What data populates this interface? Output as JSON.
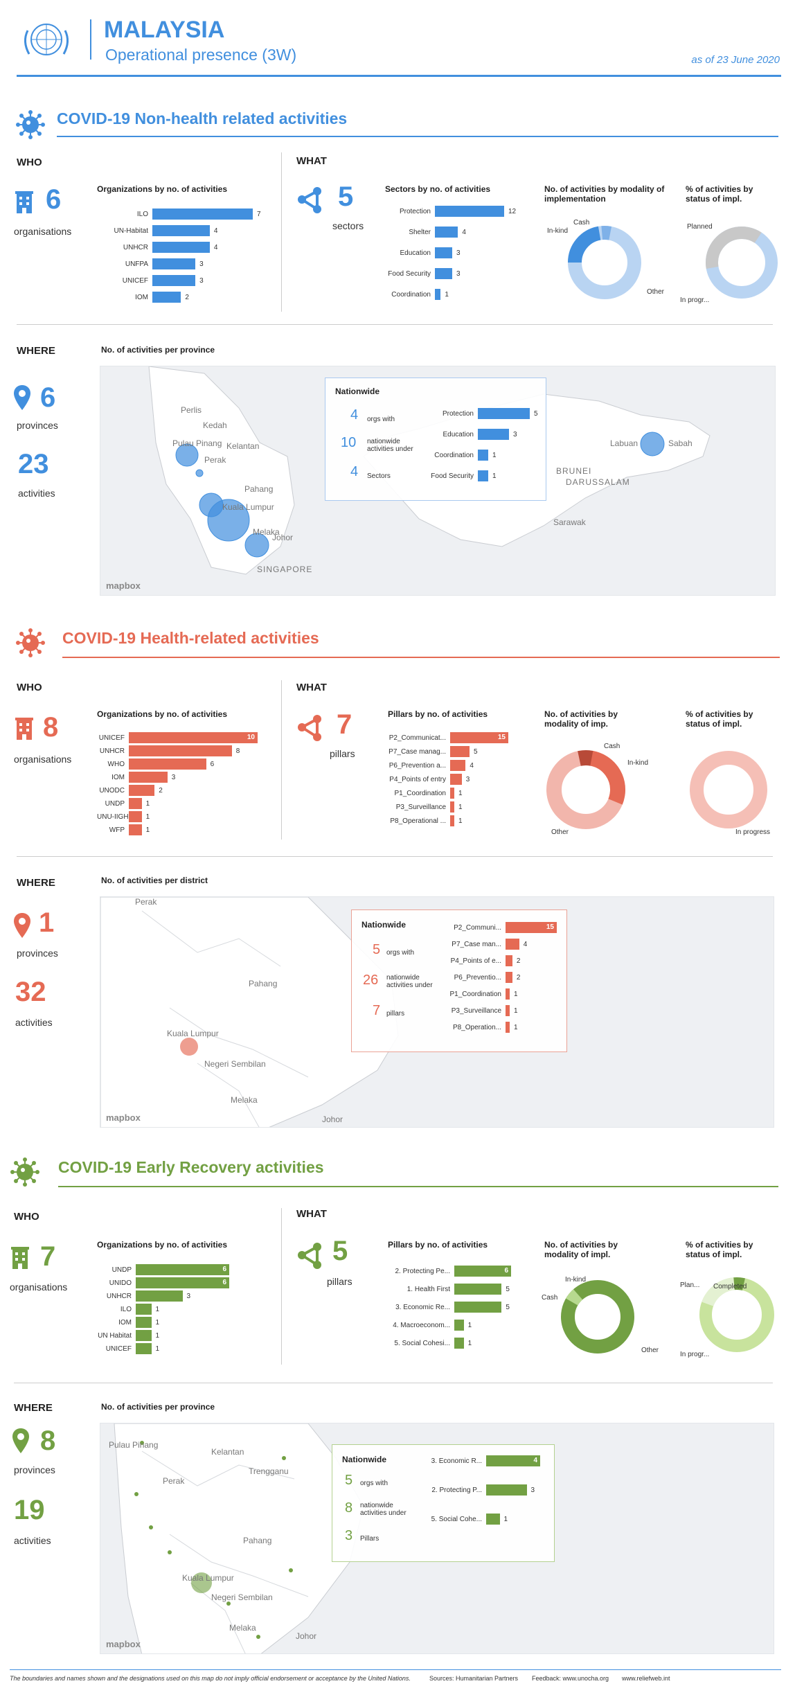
{
  "header": {
    "title": "MALAYSIA",
    "subtitle": "Operational presence (3W)",
    "date": "as of 23 June 2020"
  },
  "labels": {
    "who": "WHO",
    "what": "WHAT",
    "where": "WHERE",
    "nationwide": "Nationwide",
    "mapbox": "mapbox"
  },
  "colors": {
    "blue": "#418fde",
    "red": "#e56a54",
    "green": "#72a043"
  },
  "s1": {
    "title": "COVID-19 Non-health related activities",
    "orgs_count": "6",
    "orgs_label": "organisations",
    "orgs_chart_title": "Organizations by no. of activities",
    "orgs": [
      {
        "name": "ILO",
        "value": 7
      },
      {
        "name": "UN-Habitat",
        "value": 4
      },
      {
        "name": "UNHCR",
        "value": 4
      },
      {
        "name": "UNFPA",
        "value": 3
      },
      {
        "name": "UNICEF",
        "value": 3
      },
      {
        "name": "IOM",
        "value": 2
      }
    ],
    "what_count": "5",
    "what_label": "sectors",
    "what_chart_title": "Sectors by no. of activities",
    "what": [
      {
        "name": "Protection",
        "value": 12
      },
      {
        "name": "Shelter",
        "value": 4
      },
      {
        "name": "Education",
        "value": 3
      },
      {
        "name": "Food Security",
        "value": 3
      },
      {
        "name": "Coordination",
        "value": 1
      }
    ],
    "modality_title": "No. of activities by modality of implementation",
    "modality_labels": {
      "a": "Cash",
      "b": "In-kind",
      "c": "Other"
    },
    "status_title": "% of activities by status of impl.",
    "status_labels": {
      "a": "Planned",
      "b": "In progr..."
    },
    "where_count": "6",
    "where_label": "provinces",
    "acts_count": "23",
    "acts_label": "activities",
    "map_title": "No. of activities per province",
    "nw": {
      "orgs": "4",
      "orgs_label": "orgs with",
      "acts": "10",
      "acts_label": "nationwide activities under",
      "sec": "4",
      "sec_label": "Sectors",
      "bars": [
        {
          "name": "Protection",
          "value": 5
        },
        {
          "name": "Education",
          "value": 3
        },
        {
          "name": "Coordination",
          "value": 1
        },
        {
          "name": "Food Security",
          "value": 1
        }
      ]
    },
    "map_labels": [
      "Perlis",
      "Kedah",
      "Pulau Pinang",
      "Kelantan",
      "Perak",
      "Pahang",
      "Kuala Lumpur",
      "Melaka",
      "Johor",
      "SINGAPORE",
      "Labuan",
      "Sabah",
      "BRUNEI",
      "DARUSSALAM",
      "Sarawak"
    ]
  },
  "s2": {
    "title": "COVID-19 Health-related activities",
    "orgs_count": "8",
    "orgs_label": "organisations",
    "orgs_chart_title": "Organizations by no. of activities",
    "orgs": [
      {
        "name": "UNICEF",
        "value": 10
      },
      {
        "name": "UNHCR",
        "value": 8
      },
      {
        "name": "WHO",
        "value": 6
      },
      {
        "name": "IOM",
        "value": 3
      },
      {
        "name": "UNODC",
        "value": 2
      },
      {
        "name": "UNDP",
        "value": 1
      },
      {
        "name": "UNU-IIGH",
        "value": 1
      },
      {
        "name": "WFP",
        "value": 1
      }
    ],
    "what_count": "7",
    "what_label": "pillars",
    "what_chart_title": "Pillars by no. of activities",
    "what": [
      {
        "name": "P2_Communicat...",
        "value": 15
      },
      {
        "name": "P7_Case manag...",
        "value": 5
      },
      {
        "name": "P6_Prevention a...",
        "value": 4
      },
      {
        "name": "P4_Points of entry",
        "value": 3
      },
      {
        "name": "P1_Coordination",
        "value": 1
      },
      {
        "name": "P3_Surveillance",
        "value": 1
      },
      {
        "name": "P8_Operational ...",
        "value": 1
      }
    ],
    "modality_title": "No. of activities by modality of imp.",
    "modality_labels": {
      "a": "Cash",
      "b": "In-kind",
      "c": "Other"
    },
    "status_title": "% of activities by status of impl.",
    "status_labels": {
      "a": "In progress"
    },
    "where_count": "1",
    "where_label": "provinces",
    "acts_count": "32",
    "acts_label": "activities",
    "map_title": "No. of activities per district",
    "nw": {
      "orgs": "5",
      "orgs_label": "orgs with",
      "acts": "26",
      "acts_label": "nationwide activities under",
      "sec": "7",
      "sec_label": "pillars",
      "bars": [
        {
          "name": "P2_Communi...",
          "value": 15
        },
        {
          "name": "P7_Case man...",
          "value": 4
        },
        {
          "name": "P4_Points of e...",
          "value": 2
        },
        {
          "name": "P6_Preventio...",
          "value": 2
        },
        {
          "name": "P1_Coordination",
          "value": 1
        },
        {
          "name": "P3_Surveillance",
          "value": 1
        },
        {
          "name": "P8_Operation...",
          "value": 1
        }
      ]
    },
    "map_labels": [
      "Perak",
      "Pahang",
      "Kuala Lumpur",
      "Negeri Sembilan",
      "Melaka",
      "Johor"
    ]
  },
  "s3": {
    "title": "COVID-19 Early Recovery activities",
    "orgs_count": "7",
    "orgs_label": "organisations",
    "orgs_chart_title": "Organizations by no. of activities",
    "orgs": [
      {
        "name": "UNDP",
        "value": 6
      },
      {
        "name": "UNIDO",
        "value": 6
      },
      {
        "name": "UNHCR",
        "value": 3
      },
      {
        "name": "ILO",
        "value": 1
      },
      {
        "name": "IOM",
        "value": 1
      },
      {
        "name": "UN Habitat",
        "value": 1
      },
      {
        "name": "UNICEF",
        "value": 1
      }
    ],
    "what_count": "5",
    "what_label": "pillars",
    "what_chart_title": "Pillars by no. of activities",
    "what": [
      {
        "name": "2. Protecting Pe...",
        "value": 6
      },
      {
        "name": "1. Health First",
        "value": 5
      },
      {
        "name": "3. Economic Re...",
        "value": 5
      },
      {
        "name": "4. Macroeconom...",
        "value": 1
      },
      {
        "name": "5. Social Cohesi...",
        "value": 1
      }
    ],
    "modality_title": "No. of activities by modality of impl.",
    "modality_labels": {
      "a": "In-kind",
      "b": "Cash",
      "c": "Other"
    },
    "status_title": "% of activities by status of impl.",
    "status_labels": {
      "a": "Plan...",
      "b": "Completed",
      "c": "In progr..."
    },
    "where_count": "8",
    "where_label": "provinces",
    "acts_count": "19",
    "acts_label": "activities",
    "map_title": "No. of activities per province",
    "nw": {
      "orgs": "5",
      "orgs_label": "orgs with",
      "acts": "8",
      "acts_label": "nationwide activities under",
      "sec": "3",
      "sec_label": "Pillars",
      "bars": [
        {
          "name": "3. Economic R...",
          "value": 4
        },
        {
          "name": "2. Protecting P...",
          "value": 3
        },
        {
          "name": "5. Social Cohe...",
          "value": 1
        }
      ]
    },
    "map_labels": [
      "Pulau Pinang",
      "Kelantan",
      "Trengganu",
      "Perak",
      "Pahang",
      "Kuala Lumpur",
      "Negeri Sembilan",
      "Melaka",
      "Johor"
    ]
  },
  "footer": {
    "disclaimer": "The boundaries and names shown and the designations used on this map do not imply official endorsement or acceptance by the United Nations.",
    "sources": "Sources: Humanitarian Partners",
    "feedback": "Feedback: www.unocha.org",
    "web": "www.reliefweb.int"
  }
}
